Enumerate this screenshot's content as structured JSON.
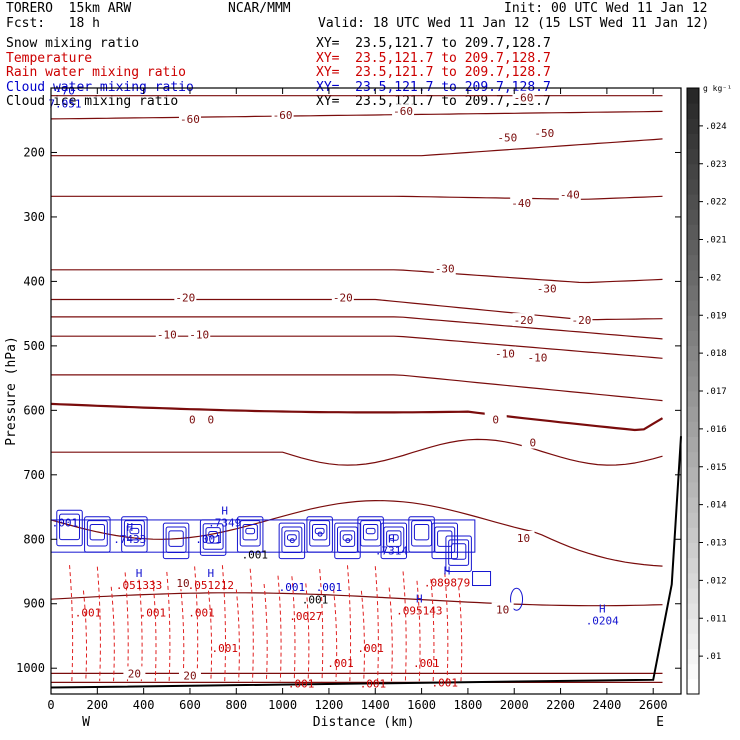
{
  "header": {
    "model": "TORERO  15km ARW",
    "center": "NCAR/MMM",
    "init": "Init: 00 UTC Wed 11 Jan 12",
    "fcst": "Fcst:   18 h",
    "valid": "Valid: 18 UTC Wed 11 Jan 12 (15 LST Wed 11 Jan 12)"
  },
  "fields": [
    {
      "name": "Snow mixing ratio",
      "xy": "XY=  23.5,121.7 to 209.7,128.7",
      "color": "#000000"
    },
    {
      "name": "Temperature",
      "xy": "XY=  23.5,121.7 to 209.7,128.7",
      "color": "#cc0000"
    },
    {
      "name": "Rain water mixing ratio",
      "xy": "XY=  23.5,121.7 to 209.7,128.7",
      "color": "#cc0000"
    },
    {
      "name": "Cloud water mixing ratio",
      "xy": "XY=  23.5,121.7 to 209.7,128.7",
      "color": "#0000cc"
    },
    {
      "name": "Cloud ice mixing ratio",
      "xy": "XY=  23.5,121.7 to 209.7,128.7",
      "color": "#000000"
    }
  ],
  "chart_data": {
    "type": "contour-cross-section",
    "xlabel": "Distance (km)",
    "ylabel": "Pressure (hPa)",
    "xlim": [
      0,
      2720
    ],
    "ylim": [
      1040,
      100
    ],
    "x_ticks": [
      0,
      200,
      400,
      600,
      800,
      1000,
      1200,
      1400,
      1600,
      1800,
      2000,
      2200,
      2400,
      2600
    ],
    "y_ticks": [
      200,
      300,
      400,
      500,
      600,
      700,
      800,
      900,
      1000
    ],
    "x_end_labels": {
      "left": "W",
      "right": "E"
    },
    "colorbar": {
      "units": "g kg⁻¹",
      "ticks": [
        ".024",
        ".023",
        ".022",
        ".021",
        ".02",
        ".019",
        ".018",
        ".017",
        ".016",
        ".015",
        ".014",
        ".013",
        ".012",
        ".011",
        ".01"
      ],
      "range": [
        0.009,
        0.025
      ]
    },
    "temperature_isotherms": [
      {
        "level": -60,
        "labels": [
          {
            "x": 600,
            "p": 148
          },
          {
            "x": 1000,
            "p": 142
          },
          {
            "x": 1520,
            "p": 136
          },
          {
            "x": 2040,
            "p": 115
          }
        ]
      },
      {
        "level": -50,
        "labels": [
          {
            "x": 1970,
            "p": 177
          },
          {
            "x": 2130,
            "p": 170
          }
        ]
      },
      {
        "level": -40,
        "labels": [
          {
            "x": 2030,
            "p": 278
          },
          {
            "x": 2240,
            "p": 265
          }
        ]
      },
      {
        "level": -30,
        "labels": [
          {
            "x": 1700,
            "p": 380
          },
          {
            "x": 2140,
            "p": 411
          }
        ]
      },
      {
        "level": -20,
        "labels": [
          {
            "x": 580,
            "p": 425
          },
          {
            "x": 1260,
            "p": 425
          },
          {
            "x": 2040,
            "p": 460
          },
          {
            "x": 2290,
            "p": 460
          }
        ]
      },
      {
        "level": -10,
        "labels": [
          {
            "x": 500,
            "p": 482
          },
          {
            "x": 640,
            "p": 482
          },
          {
            "x": 1960,
            "p": 512
          },
          {
            "x": 2100,
            "p": 518
          }
        ]
      },
      {
        "level": 0,
        "labels": [
          {
            "x": 610,
            "p": 614
          },
          {
            "x": 690,
            "p": 614
          },
          {
            "x": 1920,
            "p": 614
          },
          {
            "x": 2080,
            "p": 650
          }
        ]
      },
      {
        "level": 10,
        "labels": [
          {
            "x": 570,
            "p": 868
          },
          {
            "x": 2040,
            "p": 798
          },
          {
            "x": 1950,
            "p": 909
          }
        ]
      },
      {
        "level": 20,
        "labels": [
          {
            "x": 360,
            "p": 1008
          },
          {
            "x": 600,
            "p": 1011
          }
        ]
      }
    ],
    "cloud_water_maxima": [
      {
        "x": 340,
        "p": 790,
        "value": ".7433"
      },
      {
        "x": 750,
        "p": 765,
        "value": ".7349"
      },
      {
        "x": 1470,
        "p": 808,
        "value": ".7314"
      },
      {
        "x": 2380,
        "p": 917,
        "value": ".0204"
      }
    ],
    "rain_maxima": [
      {
        "x": 380,
        "p": 877,
        "value": ".051333"
      },
      {
        "x": 690,
        "p": 877,
        "value": ".051212"
      },
      {
        "x": 1590,
        "p": 917,
        "value": ".095143"
      },
      {
        "x": 1710,
        "p": 873,
        "value": ".089879"
      }
    ],
    "contour_value_labels": [
      {
        "x": 60,
        "p": 780,
        "value": ".001",
        "color": "#0000cc"
      },
      {
        "x": 160,
        "p": 920,
        "value": ".001",
        "color": "#cc0000"
      },
      {
        "x": 440,
        "p": 920,
        "value": ".001",
        "color": "#cc0000"
      },
      {
        "x": 650,
        "p": 920,
        "value": ".001",
        "color": "#cc0000"
      },
      {
        "x": 750,
        "p": 975,
        "value": ".001",
        "color": "#cc0000"
      },
      {
        "x": 680,
        "p": 806,
        "value": ".001",
        "color": "#0000cc"
      },
      {
        "x": 1040,
        "p": 880,
        "value": ".001",
        "color": "#0000cc"
      },
      {
        "x": 1200,
        "p": 880,
        "value": ".001",
        "color": "#0000cc"
      },
      {
        "x": 1250,
        "p": 998,
        "value": ".001",
        "color": "#cc0000"
      },
      {
        "x": 1380,
        "p": 975,
        "value": ".001",
        "color": "#cc0000"
      },
      {
        "x": 1620,
        "p": 998,
        "value": ".001",
        "color": "#cc0000"
      },
      {
        "x": 1080,
        "p": 1030,
        "value": ".001",
        "color": "#cc0000"
      },
      {
        "x": 1390,
        "p": 1030,
        "value": ".001",
        "color": "#cc0000"
      },
      {
        "x": 1700,
        "p": 1028,
        "value": ".001",
        "color": "#cc0000"
      }
    ],
    "overlapping_labels": [
      {
        "x": 60,
        "p": 110,
        "value": "-70",
        "color": "#0000cc"
      },
      {
        "x": 60,
        "p": 130,
        "value": "7.051",
        "color": "#0000cc"
      },
      {
        "x": 880,
        "p": 830,
        "value": ".001",
        "color": "#000000"
      },
      {
        "x": 1140,
        "p": 900,
        "value": ".001",
        "color": "#000000"
      },
      {
        "x": 1100,
        "p": 925,
        "value": ".0027",
        "color": "#cc0000"
      }
    ]
  }
}
